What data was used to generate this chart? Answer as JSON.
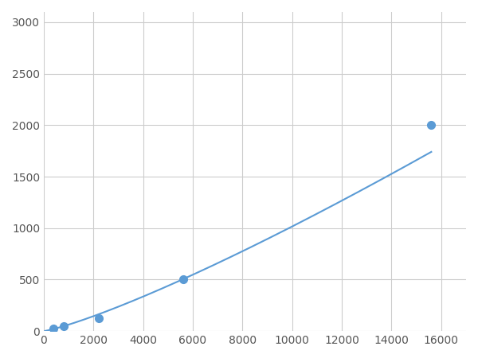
{
  "x": [
    400,
    800,
    2200,
    5600,
    15600
  ],
  "y": [
    25,
    45,
    125,
    500,
    2000
  ],
  "line_color": "#5B9BD5",
  "marker_color": "#5B9BD5",
  "marker_size": 7,
  "marker_style": "o",
  "linewidth": 1.5,
  "xlim": [
    0,
    17000
  ],
  "ylim": [
    0,
    3100
  ],
  "xticks": [
    0,
    2000,
    4000,
    6000,
    8000,
    10000,
    12000,
    14000,
    16000
  ],
  "yticks": [
    0,
    500,
    1000,
    1500,
    2000,
    2500,
    3000
  ],
  "grid": true,
  "grid_color": "#CCCCCC",
  "background_color": "#FFFFFF",
  "figsize": [
    6.0,
    4.5
  ],
  "dpi": 100
}
